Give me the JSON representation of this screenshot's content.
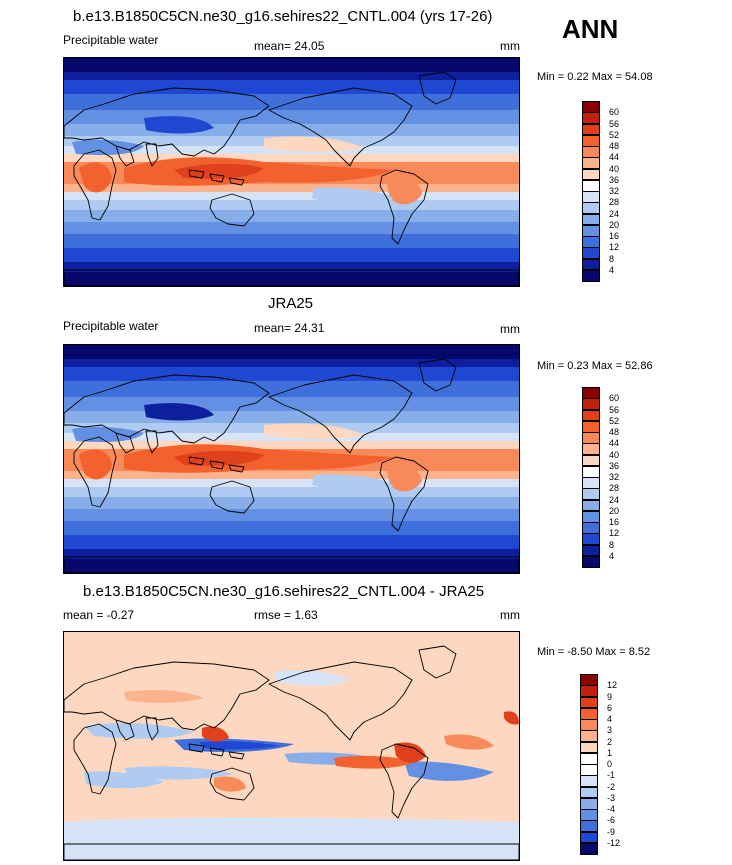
{
  "season": "ANN",
  "panels": [
    {
      "title": "b.e13.B1850C5CN.ne30_g16.sehires22_CNTL.004 (yrs 17-26)",
      "variable": "Precipitable water",
      "mean_text": "mean=  24.05",
      "units": "mm",
      "minmax_text": "Min =   0.22 Max =  54.08",
      "colorbar": {
        "levels": [
          "60",
          "56",
          "52",
          "48",
          "44",
          "40",
          "36",
          "32",
          "28",
          "24",
          "20",
          "16",
          "12",
          "8",
          "4"
        ],
        "colors": [
          "#8b0000",
          "#c1210f",
          "#e0401b",
          "#f2612e",
          "#f88a5a",
          "#fbb38d",
          "#fdd7bf",
          "#ffffff",
          "#d6e3f7",
          "#b0cbf1",
          "#88aee9",
          "#6490e3",
          "#3f6fdb",
          "#1f48d2",
          "#0d1f9d",
          "#06096b"
        ]
      },
      "map": {
        "kind": "model"
      }
    },
    {
      "title": "JRA25",
      "variable": "Precipitable water",
      "mean_text": "mean=  24.31",
      "units": "mm",
      "minmax_text": "Min =   0.23 Max =  52.86",
      "colorbar": {
        "levels": [
          "60",
          "56",
          "52",
          "48",
          "44",
          "40",
          "36",
          "32",
          "28",
          "24",
          "20",
          "16",
          "12",
          "8",
          "4"
        ],
        "colors": [
          "#8b0000",
          "#c1210f",
          "#e0401b",
          "#f2612e",
          "#f88a5a",
          "#fbb38d",
          "#fdd7bf",
          "#ffffff",
          "#d6e3f7",
          "#b0cbf1",
          "#88aee9",
          "#6490e3",
          "#3f6fdb",
          "#1f48d2",
          "#0d1f9d",
          "#06096b"
        ]
      },
      "map": {
        "kind": "obs"
      }
    },
    {
      "title": "b.e13.B1850C5CN.ne30_g16.sehires22_CNTL.004 - JRA25",
      "variable": "",
      "mean_text": "mean =  -0.27",
      "rmse_text": "rmse =   1.63",
      "units": "mm",
      "minmax_text": "Min =  -8.50 Max =   8.52",
      "colorbar": {
        "levels": [
          "12",
          "9",
          "6",
          "4",
          "3",
          "2",
          "1",
          "0",
          "-1",
          "-2",
          "-3",
          "-4",
          "-6",
          "-9",
          "-12"
        ],
        "colors": [
          "#8b0000",
          "#c1210f",
          "#e0401b",
          "#f2612e",
          "#f88a5a",
          "#fbb38d",
          "#fdd7bf",
          "#ffffff",
          "#ffffff",
          "#d6e3f7",
          "#b0cbf1",
          "#88aee9",
          "#6490e3",
          "#3f6fdb",
          "#1f48d2",
          "#06096b"
        ]
      },
      "map": {
        "kind": "diff"
      }
    }
  ]
}
